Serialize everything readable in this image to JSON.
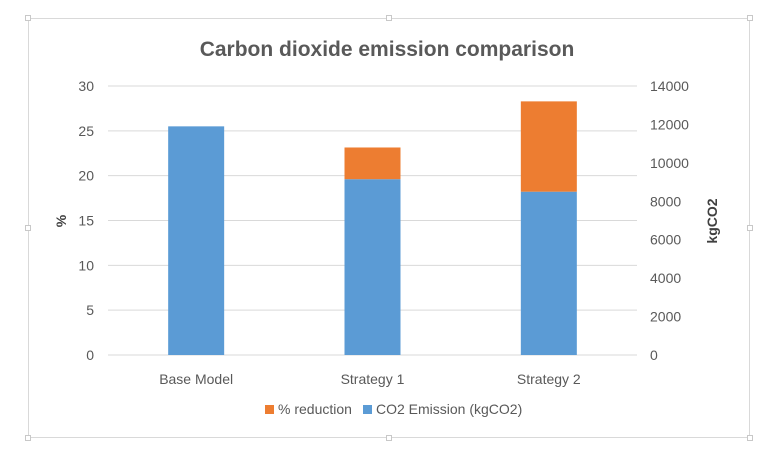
{
  "chart_data": {
    "type": "bar",
    "title": "Carbon dioxide emission comparison",
    "categories": [
      "Base Model",
      "Strategy 1",
      "Strategy 2"
    ],
    "left_axis": {
      "label": "%",
      "min": 0,
      "max": 30,
      "ticks": [
        0,
        5,
        10,
        15,
        20,
        25,
        30
      ]
    },
    "right_axis": {
      "label": "kgCO2",
      "min": 0,
      "max": 14000,
      "ticks": [
        0,
        2000,
        4000,
        6000,
        8000,
        10000,
        12000,
        14000
      ]
    },
    "stacked": true,
    "grid": true,
    "legend_position": "bottom",
    "series": [
      {
        "name": "CO2 Emission (kgCO2)",
        "axis": "right",
        "color": "#5b9bd5",
        "values": [
          11900,
          9150,
          8500
        ]
      },
      {
        "name": "% reduction",
        "axis": "right",
        "color": "#ed7d31",
        "values": [
          0,
          1650,
          4700
        ]
      }
    ],
    "legend_order": [
      "% reduction",
      "CO2 Emission (kgCO2)"
    ]
  }
}
